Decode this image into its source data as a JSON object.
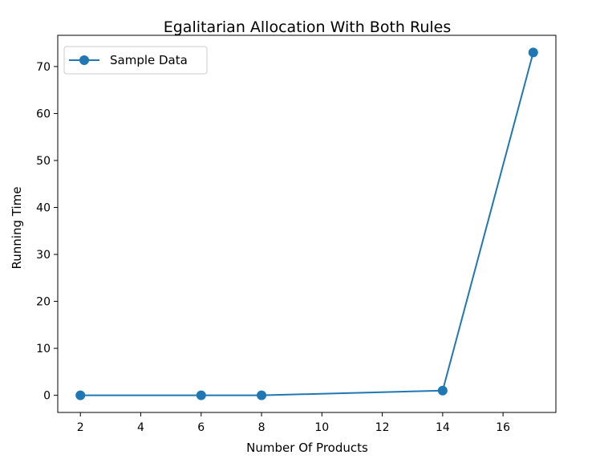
{
  "chart_data": {
    "type": "line",
    "title": "Egalitarian Allocation With Both Rules",
    "xlabel": "Number Of Products",
    "ylabel": "Running Time",
    "xlim": [
      1.25,
      17.75
    ],
    "ylim": [
      -3.65,
      76.65
    ],
    "xticks": [
      2,
      4,
      6,
      8,
      10,
      12,
      14,
      16
    ],
    "yticks": [
      0,
      10,
      20,
      30,
      40,
      50,
      60,
      70
    ],
    "grid": false,
    "legend_position": "top-left",
    "series": [
      {
        "name": "Sample Data",
        "color": "#1f77b4",
        "marker": "circle",
        "x": [
          2,
          6,
          8,
          14,
          17
        ],
        "y": [
          0,
          0,
          0,
          1,
          73
        ]
      }
    ]
  }
}
